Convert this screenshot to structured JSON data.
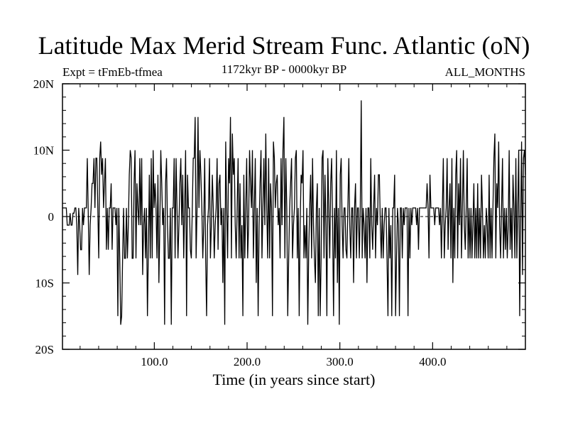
{
  "header": {
    "title": "Latitude Max Merid Stream Func. Atlantic (oN)",
    "expt": "Expt = tFmEb-tfmea",
    "period": "1172kyr BP - 0000kyr BP",
    "months": "ALL_MONTHS"
  },
  "chart_data": {
    "type": "line",
    "title": "Latitude Max Merid Stream Func. Atlantic (oN)",
    "xlabel": "Time (in years since start)",
    "ylabel": "",
    "xlim": [
      1,
      500
    ],
    "ylim": [
      -20,
      20
    ],
    "x_ticks": [
      100,
      200,
      300,
      400
    ],
    "x_tick_labels": [
      "100.0",
      "200.0",
      "300.0",
      "400.0"
    ],
    "y_ticks": [
      -20,
      -10,
      0,
      10,
      20
    ],
    "y_tick_labels": [
      "20S",
      "10S",
      "0",
      "10N",
      "20N"
    ],
    "zero_line": true,
    "grid": false,
    "series": [
      {
        "values": [
          1.3,
          1.3,
          1.3,
          1.3,
          1.3,
          -1.3,
          -1.3,
          -1.3,
          0.5,
          -1.3,
          -1.3,
          0.5,
          0.5,
          1.3,
          1.3,
          -1.3,
          -8.8,
          1.3,
          -1.3,
          -5.0,
          -5.0,
          1.3,
          -1.3,
          1.3,
          1.3,
          1.3,
          8.8,
          0.5,
          -8.8,
          -1.3,
          1.3,
          5.0,
          5.0,
          8.8,
          1.3,
          8.8,
          8.8,
          1.3,
          -6.3,
          8.8,
          11.3,
          6.3,
          8.8,
          1.3,
          5.0,
          8.8,
          -5.0,
          1.3,
          -5.0,
          1.3,
          1.3,
          5.0,
          -5.0,
          1.3,
          1.3,
          1.3,
          -1.3,
          1.3,
          -15.0,
          1.3,
          -6.3,
          -16.3,
          -15.0,
          -6.3,
          1.3,
          -6.3,
          -6.3,
          1.3,
          -6.3,
          -1.3,
          6.3,
          10.0,
          8.8,
          -6.3,
          -6.3,
          5.0,
          10.0,
          -6.3,
          5.0,
          1.3,
          -1.3,
          8.8,
          -1.3,
          8.8,
          -8.8,
          -1.3,
          1.3,
          -6.3,
          1.3,
          -15.0,
          -5.0,
          6.3,
          -6.3,
          8.8,
          -6.3,
          10.0,
          1.3,
          5.0,
          1.3,
          -6.3,
          6.3,
          -10.0,
          -1.3,
          10.0,
          5.0,
          -1.3,
          1.3,
          -16.3,
          5.0,
          8.8,
          -1.3,
          -6.3,
          -6.3,
          1.3,
          -16.3,
          1.3,
          1.3,
          8.8,
          -6.3,
          8.8,
          1.3,
          -6.3,
          -1.3,
          5.0,
          8.8,
          -1.3,
          6.3,
          -6.3,
          1.3,
          10.0,
          -15.0,
          6.3,
          1.3,
          1.3,
          -5.0,
          -6.3,
          1.3,
          8.8,
          8.8,
          15.0,
          -6.3,
          1.3,
          15.0,
          1.3,
          10.0,
          6.3,
          1.3,
          -6.3,
          -1.3,
          8.8,
          -6.3,
          -15.0,
          -1.3,
          1.3,
          8.8,
          -6.3,
          -1.3,
          6.3,
          1.3,
          -6.3,
          -1.3,
          1.3,
          8.8,
          -5.0,
          5.0,
          6.3,
          -1.3,
          1.3,
          -10.0,
          1.3,
          -16.3,
          11.3,
          1.3,
          -6.3,
          8.8,
          5.0,
          15.0,
          -6.3,
          12.5,
          6.3,
          8.8,
          -1.3,
          -6.3,
          1.3,
          8.8,
          -6.3,
          5.0,
          -6.3,
          -1.3,
          -15.0,
          6.3,
          -6.3,
          1.3,
          8.8,
          -6.3,
          -1.3,
          10.0,
          5.0,
          1.3,
          10.0,
          -6.3,
          1.3,
          8.8,
          -10.0,
          1.3,
          -15.0,
          -1.3,
          5.0,
          10.0,
          -6.3,
          1.3,
          8.8,
          -1.3,
          12.5,
          1.3,
          -6.3,
          8.8,
          -6.3,
          5.0,
          1.3,
          -15.0,
          11.3,
          8.8,
          1.3,
          5.0,
          6.3,
          -1.3,
          1.3,
          -6.3,
          8.8,
          -1.3,
          10.0,
          15.0,
          -6.3,
          8.8,
          1.3,
          -15.0,
          -6.3,
          1.3,
          5.0,
          8.8,
          -6.3,
          -1.3,
          1.3,
          8.8,
          10.0,
          -6.3,
          1.3,
          -15.0,
          -1.3,
          6.3,
          5.0,
          10.0,
          -6.3,
          -1.3,
          -6.3,
          1.3,
          -16.3,
          -5.0,
          1.3,
          6.3,
          -6.3,
          8.8,
          -1.3,
          -6.3,
          -10.0,
          1.3,
          5.0,
          -15.0,
          1.3,
          -15.0,
          -6.3,
          8.8,
          10.0,
          -6.3,
          6.3,
          -1.3,
          -15.0,
          8.8,
          1.3,
          -6.3,
          5.0,
          8.8,
          -1.3,
          -15.0,
          1.3,
          -6.3,
          10.0,
          -10.0,
          1.3,
          -16.3,
          6.3,
          8.8,
          -1.3,
          -6.3,
          1.3,
          1.3,
          -5.0,
          -6.3,
          1.3,
          8.8,
          -1.3,
          -6.3,
          1.3,
          1.3,
          -10.0,
          1.3,
          5.0,
          -6.3,
          1.3,
          1.3,
          -6.3,
          1.3,
          17.5,
          -6.3,
          1.3,
          -1.3,
          -6.3,
          1.3,
          -10.0,
          1.3,
          1.3,
          -6.3,
          8.8,
          -1.3,
          -5.0,
          1.3,
          6.3,
          -6.3,
          1.3,
          -1.3,
          6.3,
          6.3,
          -1.3,
          -6.3,
          1.3,
          -6.3,
          -1.3,
          1.3,
          1.3,
          -6.3,
          -15.0,
          1.3,
          -6.3,
          -1.3,
          -15.0,
          1.3,
          1.3,
          6.3,
          -15.0,
          -6.3,
          1.3,
          -1.3,
          -15.0,
          1.3,
          1.3,
          -6.3,
          1.3,
          -1.3,
          1.3,
          1.3,
          1.3,
          -15.0,
          1.3,
          -6.3,
          1.3,
          -1.3,
          1.3,
          1.3,
          1.3,
          1.3,
          -1.3,
          1.3,
          -5.0,
          1.3,
          1.3,
          1.3,
          1.3,
          1.3,
          1.3,
          1.3,
          1.3,
          5.0,
          1.3,
          -6.3,
          6.3,
          1.3,
          1.3,
          1.3,
          1.3,
          -1.3,
          1.3,
          1.3,
          1.3,
          1.3,
          -1.3,
          1.3,
          -6.3,
          1.3,
          8.8,
          -6.3,
          -1.3,
          1.3,
          8.8,
          -5.0,
          1.3,
          5.0,
          -6.3,
          8.8,
          -10.0,
          1.3,
          -6.3,
          6.3,
          10.0,
          -6.3,
          5.0,
          -1.3,
          8.8,
          -6.3,
          1.3,
          10.0,
          -1.3,
          -5.0,
          1.3,
          8.8,
          -6.3,
          1.3,
          -6.3,
          1.3,
          -6.3,
          -1.3,
          5.0,
          -6.3,
          1.3,
          -6.3,
          5.0,
          -6.3,
          1.3,
          -6.3,
          6.3,
          1.3,
          -6.3,
          -1.3,
          -6.3,
          1.3,
          -1.3,
          -6.3,
          6.3,
          -6.3,
          1.3,
          -6.3,
          1.3,
          8.8,
          12.5,
          -6.3,
          5.0,
          1.3,
          11.3,
          -1.3,
          -6.3,
          1.3,
          8.8,
          -6.3,
          1.3,
          -5.0,
          1.3,
          -6.3,
          -1.3,
          10.0,
          -5.0,
          1.3,
          -6.3,
          6.3,
          1.3,
          -6.3,
          8.8,
          -6.3,
          1.3,
          10.0,
          -15.0,
          -1.3,
          11.3,
          -8.8,
          8.8,
          10.0,
          6.3
        ]
      }
    ]
  }
}
